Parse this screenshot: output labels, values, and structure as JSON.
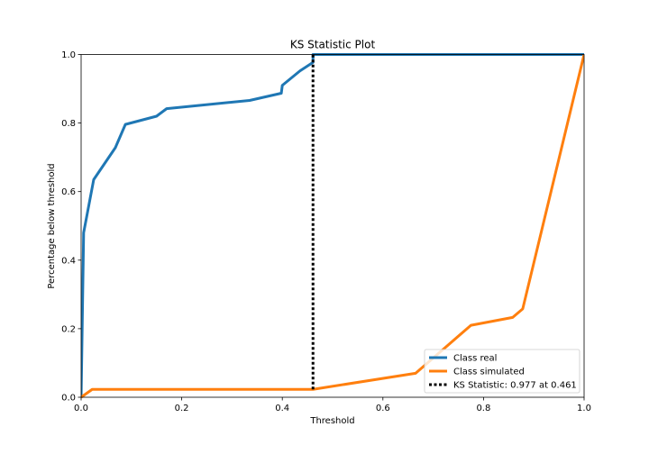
{
  "chart_data": {
    "type": "line",
    "title": "KS Statistic Plot",
    "xlabel": "Threshold",
    "ylabel": "Percentage below threshold",
    "xlim": [
      0,
      1
    ],
    "ylim": [
      0,
      1
    ],
    "x_ticks": [
      "0.0",
      "0.2",
      "0.4",
      "0.6",
      "0.8",
      "1.0"
    ],
    "y_ticks": [
      "0.0",
      "0.2",
      "0.4",
      "0.6",
      "0.8",
      "1.0"
    ],
    "grid": false,
    "legend_position": "lower-right",
    "series": [
      {
        "name": "Class real",
        "color": "#1f77b4",
        "style": "solid",
        "points": [
          [
            0.0,
            0.0
          ],
          [
            0.005,
            0.48
          ],
          [
            0.025,
            0.635
          ],
          [
            0.068,
            0.728
          ],
          [
            0.088,
            0.796
          ],
          [
            0.15,
            0.82
          ],
          [
            0.17,
            0.842
          ],
          [
            0.335,
            0.866
          ],
          [
            0.398,
            0.887
          ],
          [
            0.4,
            0.91
          ],
          [
            0.435,
            0.952
          ],
          [
            0.461,
            0.977
          ],
          [
            0.461,
            1.0
          ],
          [
            1.0,
            1.0
          ]
        ]
      },
      {
        "name": "Class simulated",
        "color": "#ff7f0e",
        "style": "solid",
        "points": [
          [
            0.0,
            0.0
          ],
          [
            0.022,
            0.023
          ],
          [
            0.461,
            0.023
          ],
          [
            0.665,
            0.07
          ],
          [
            0.775,
            0.21
          ],
          [
            0.858,
            0.233
          ],
          [
            0.878,
            0.258
          ],
          [
            1.0,
            1.0
          ]
        ]
      }
    ],
    "ks_line": {
      "label": "KS Statistic: 0.977 at 0.461",
      "x": 0.461,
      "y_from": 0.023,
      "y_to": 1.0,
      "color": "#000000",
      "style": "dotted"
    }
  }
}
